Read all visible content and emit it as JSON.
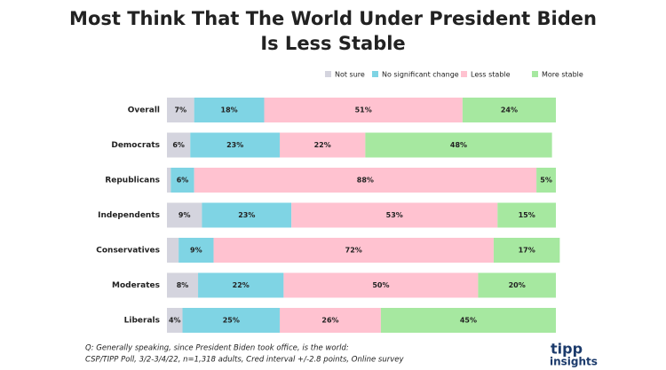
{
  "chart_data": {
    "type": "stacked-barh",
    "title": [
      "Most Think That The World Under President Biden",
      "Is Less Stable"
    ],
    "categories": [
      "Overall",
      "Democrats",
      "Republicans",
      "Independents",
      "Conservatives",
      "Moderates",
      "Liberals"
    ],
    "series": [
      {
        "name": "Not sure",
        "color": "#d4d4de",
        "values": [
          7,
          6,
          1,
          9,
          3,
          8,
          4
        ],
        "value_labels": [
          "7%",
          "6%",
          null,
          "9%",
          null,
          "8%",
          "4%"
        ]
      },
      {
        "name": "No significant change",
        "color": "#7fd4e4",
        "values": [
          18,
          23,
          6,
          23,
          9,
          22,
          25
        ],
        "value_labels": [
          "18%",
          "23%",
          "6%",
          "23%",
          "9%",
          "22%",
          "25%"
        ]
      },
      {
        "name": "Less stable",
        "color": "#ffc2d0",
        "values": [
          51,
          22,
          88,
          53,
          72,
          50,
          26
        ],
        "value_labels": [
          "51%",
          "22%",
          "88%",
          "53%",
          "72%",
          "50%",
          "26%"
        ]
      },
      {
        "name": "More stable",
        "color": "#a6e8a0",
        "values": [
          24,
          48,
          5,
          15,
          17,
          20,
          45
        ],
        "value_labels": [
          "24%",
          "48%",
          "5%",
          "15%",
          "17%",
          "20%",
          "45%"
        ]
      }
    ],
    "xlim": [
      0,
      100
    ],
    "legend": "top-right",
    "footnote": [
      "Q:  Generally speaking, since President Biden took office, is the world:",
      "CSP/TIPP Poll, 3/2-3/4/22, n=1,318 adults, Cred interval +/-2.8 points, Online survey"
    ],
    "logo": [
      "tipp",
      "insights"
    ]
  }
}
